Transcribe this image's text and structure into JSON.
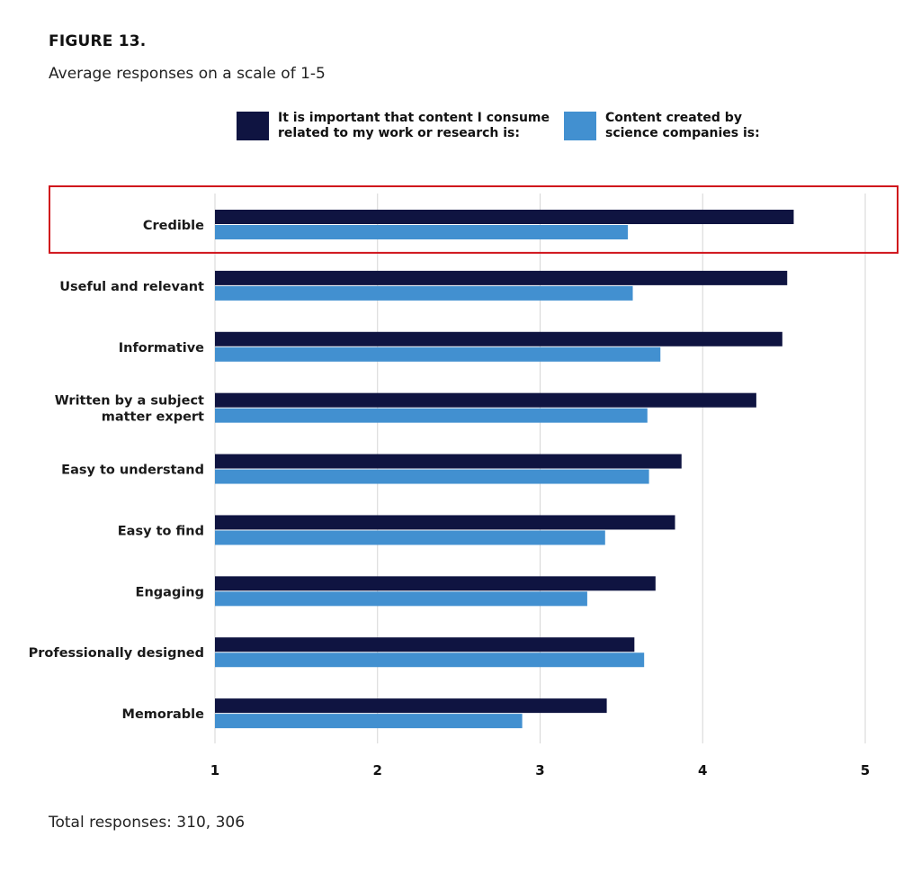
{
  "figure_title": "FIGURE 13.",
  "subtitle": "Average responses on a scale of 1-5",
  "footer": "Total responses: 310, 306",
  "colors": {
    "series_1": "#0f1441",
    "series_2": "#4290d0",
    "gridline": "#d6d6d6",
    "highlight_box": "#d0141c"
  },
  "highlighted_category": "Credible",
  "chart_data": {
    "type": "bar",
    "orientation": "horizontal",
    "categories": [
      "Credible",
      "Useful and relevant",
      "Informative",
      "Written by a subject\nmatter expert",
      "Easy to understand",
      "Easy to find",
      "Engaging",
      "Professionally designed",
      "Memorable"
    ],
    "series": [
      {
        "name": "It is important that content I consume\nrelated to my work or research is:",
        "values": [
          4.56,
          4.52,
          4.49,
          4.33,
          3.87,
          3.83,
          3.71,
          3.58,
          3.41
        ]
      },
      {
        "name": "Content created by\nscience companies is:",
        "values": [
          3.54,
          3.57,
          3.74,
          3.66,
          3.67,
          3.4,
          3.29,
          3.64,
          2.89
        ]
      }
    ],
    "xlim": [
      1,
      5
    ],
    "xticks": [
      "1",
      "2",
      "3",
      "4",
      "5"
    ],
    "grid": true,
    "legend_position": "top"
  }
}
